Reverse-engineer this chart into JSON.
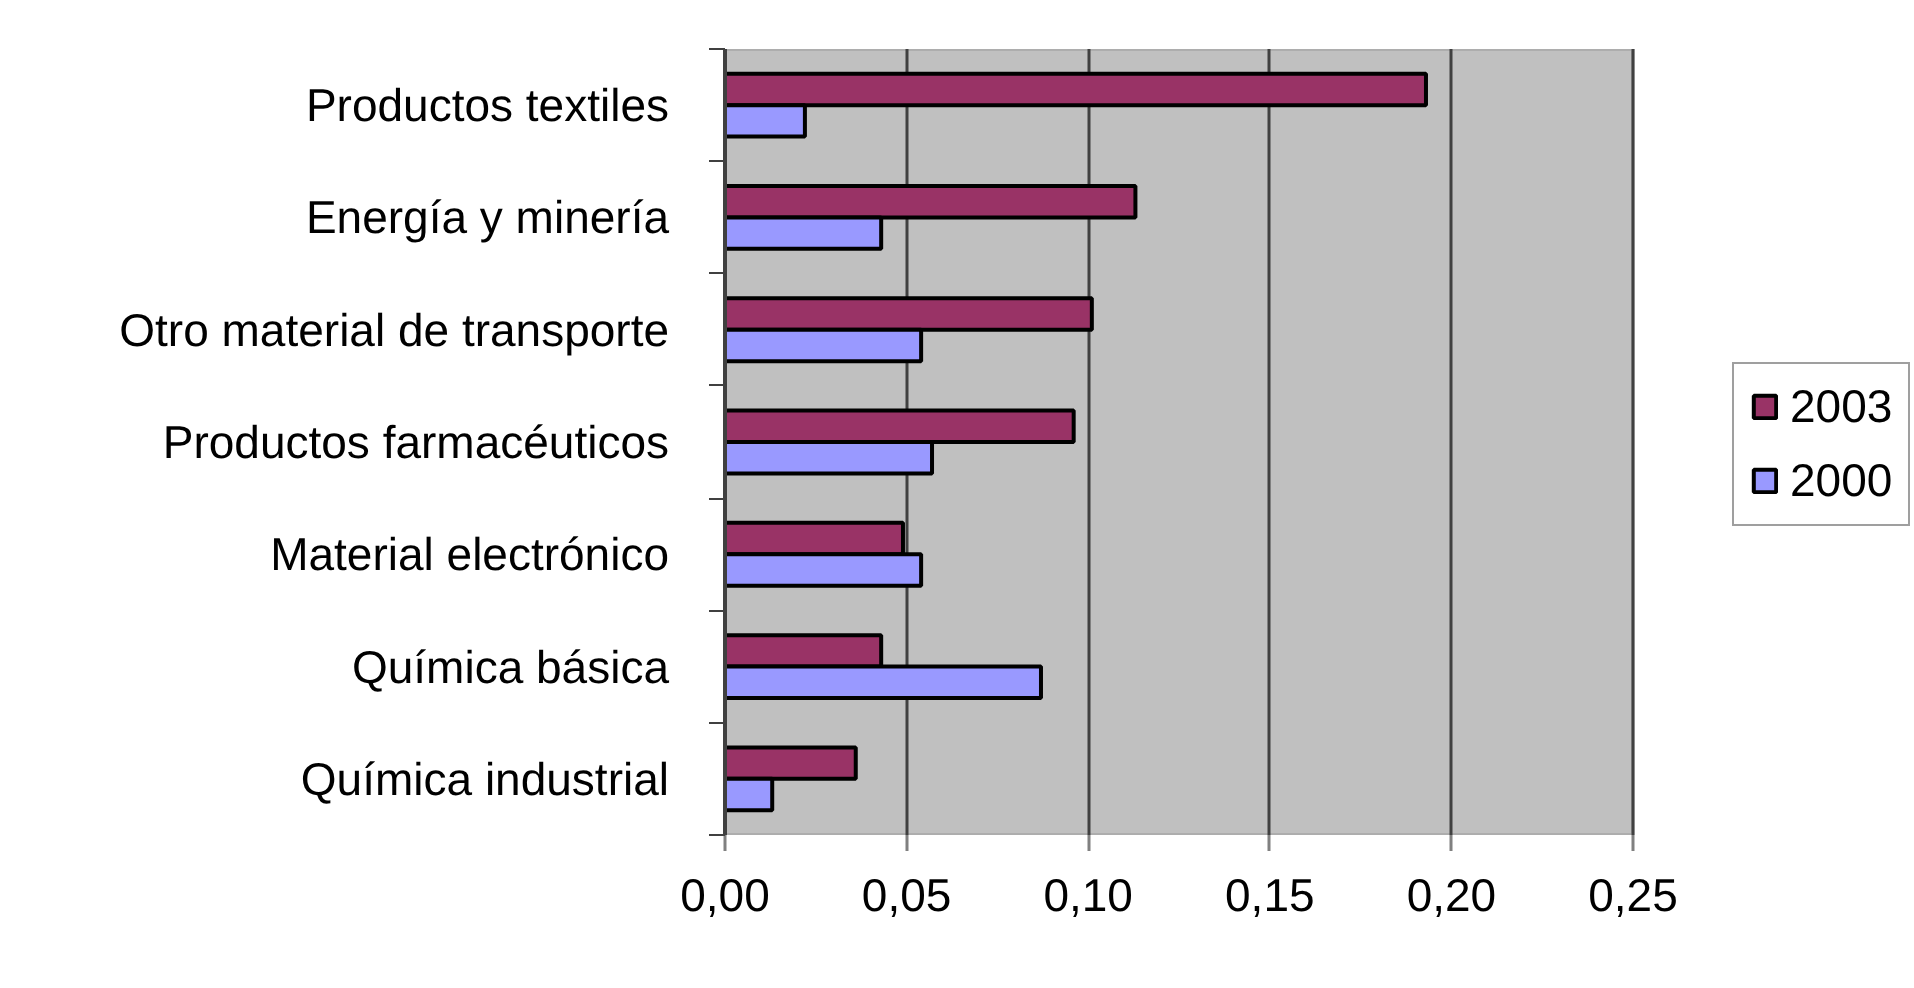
{
  "chart_data": {
    "type": "bar",
    "orientation": "horizontal",
    "categories": [
      "Productos textiles",
      "Energía y minería",
      "Otro material de transporte",
      "Productos farmacéuticos",
      "Material electrónico",
      "Química básica",
      "Química industrial"
    ],
    "series": [
      {
        "name": "2003",
        "color": "#993366",
        "values": [
          0.193,
          0.113,
          0.101,
          0.096,
          0.049,
          0.043,
          0.036
        ]
      },
      {
        "name": "2000",
        "color": "#9999ff",
        "values": [
          0.022,
          0.043,
          0.054,
          0.057,
          0.054,
          0.087,
          0.013
        ]
      }
    ],
    "xlim": [
      0,
      0.25
    ],
    "xticks": [
      {
        "value": 0,
        "label": "0,00"
      },
      {
        "value": 0.05,
        "label": "0,05"
      },
      {
        "value": 0.1,
        "label": "0,10"
      },
      {
        "value": 0.15,
        "label": "0,15"
      },
      {
        "value": 0.2,
        "label": "0,20"
      },
      {
        "value": 0.25,
        "label": "0,25"
      }
    ],
    "grid": "x",
    "legend": "right"
  }
}
